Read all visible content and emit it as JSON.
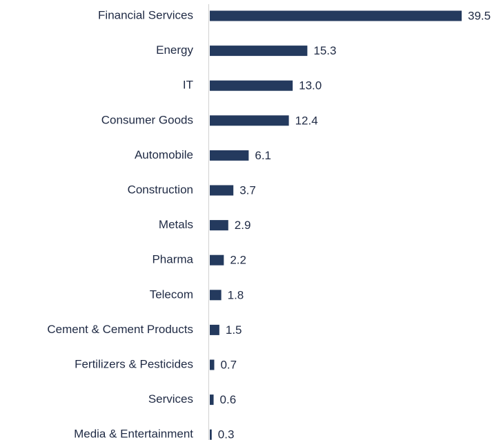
{
  "chart_data": {
    "type": "bar",
    "orientation": "horizontal",
    "color": "#243a5e",
    "categories": [
      "Financial Services",
      "Energy",
      "IT",
      "Consumer Goods",
      "Automobile",
      "Construction",
      "Metals",
      "Pharma",
      "Telecom",
      "Cement & Cement Products",
      "Fertilizers & Pesticides",
      "Services",
      "Media & Entertainment"
    ],
    "values": [
      39.5,
      15.3,
      13.0,
      12.4,
      6.1,
      3.7,
      2.9,
      2.2,
      1.8,
      1.5,
      0.7,
      0.6,
      0.3
    ],
    "value_labels": [
      "39.5",
      "15.3",
      "13.0",
      "12.4",
      "6.1",
      "3.7",
      "2.9",
      "2.2",
      "1.8",
      "1.5",
      "0.7",
      "0.6",
      "0.3"
    ]
  }
}
